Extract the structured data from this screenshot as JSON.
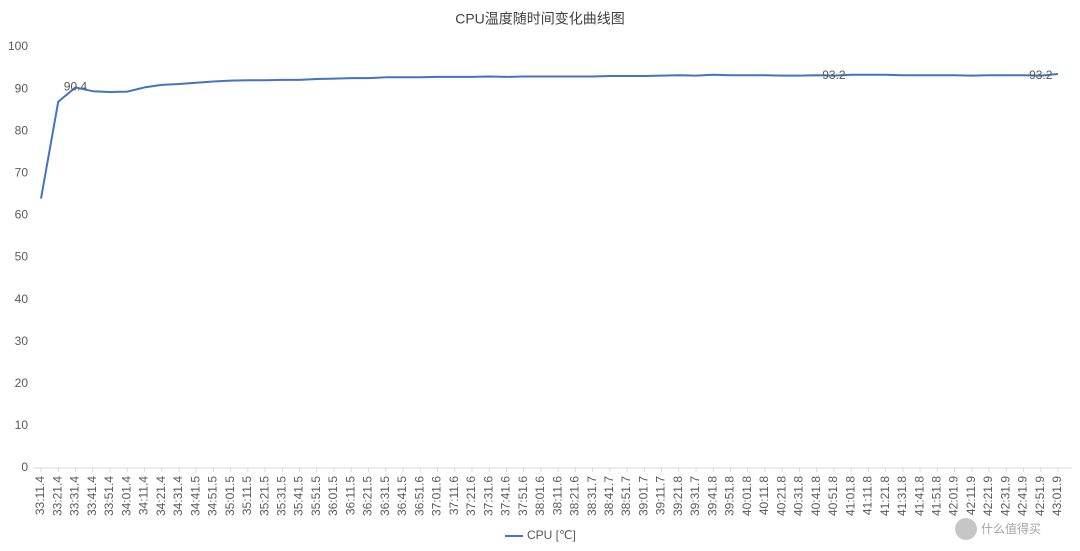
{
  "chart_data": {
    "type": "line",
    "title": "CPU温度随时间变化曲线图",
    "categories": [
      "33:11.4",
      "33:21.4",
      "33:31.4",
      "33:41.4",
      "33:51.4",
      "34:01.4",
      "34:11.4",
      "34:21.4",
      "34:31.4",
      "34:41.5",
      "34:51.5",
      "35:01.5",
      "35:11.5",
      "35:21.5",
      "35:31.5",
      "35:41.5",
      "35:51.5",
      "36:01.5",
      "36:11.5",
      "36:21.5",
      "36:31.5",
      "36:41.5",
      "36:51.6",
      "37:01.6",
      "37:11.6",
      "37:21.6",
      "37:31.6",
      "37:41.6",
      "37:51.6",
      "38:01.6",
      "38:11.6",
      "38:21.6",
      "38:31.7",
      "38:41.7",
      "38:51.7",
      "39:01.7",
      "39:11.7",
      "39:21.8",
      "39:31.7",
      "39:41.8",
      "39:51.8",
      "40:01.8",
      "40:11.8",
      "40:21.8",
      "40:31.8",
      "40:41.8",
      "40:51.8",
      "41:01.8",
      "41:11.8",
      "41:21.8",
      "41:31.8",
      "41:41.8",
      "41:51.8",
      "42:01.9",
      "42:11.9",
      "42:21.9",
      "42:31.9",
      "42:41.9",
      "42:51.9",
      "43:01.9"
    ],
    "series": [
      {
        "name": "CPU [℃]",
        "color": "#4472c4",
        "values": [
          64,
          87,
          90.4,
          89.5,
          89.3,
          89.4,
          90.4,
          91,
          91.2,
          91.5,
          91.8,
          92,
          92.1,
          92.1,
          92.2,
          92.2,
          92.4,
          92.5,
          92.6,
          92.6,
          92.8,
          92.8,
          92.8,
          92.9,
          92.9,
          92.9,
          93,
          92.9,
          93,
          93,
          93,
          93,
          93,
          93.1,
          93.1,
          93.1,
          93.2,
          93.3,
          93.2,
          93.4,
          93.3,
          93.3,
          93.3,
          93.2,
          93.2,
          93.3,
          93.2,
          93.4,
          93.4,
          93.4,
          93.3,
          93.3,
          93.3,
          93.3,
          93.2,
          93.3,
          93.3,
          93.3,
          93.2,
          93.6
        ],
        "value_labels": [
          null,
          null,
          "90.4",
          null,
          null,
          null,
          null,
          null,
          null,
          null,
          null,
          null,
          null,
          null,
          null,
          null,
          null,
          null,
          null,
          null,
          null,
          null,
          null,
          null,
          null,
          null,
          null,
          null,
          null,
          null,
          null,
          null,
          null,
          null,
          null,
          null,
          null,
          null,
          null,
          null,
          null,
          null,
          null,
          null,
          null,
          null,
          "93.2",
          null,
          null,
          null,
          null,
          null,
          null,
          null,
          null,
          null,
          null,
          null,
          "93.2",
          null
        ]
      }
    ],
    "ylim": [
      0,
      100
    ],
    "yticks": [
      0,
      10,
      20,
      30,
      40,
      50,
      60,
      70,
      80,
      90,
      100
    ],
    "grid": false,
    "legend": "bottom",
    "watermark": "什么值得买"
  }
}
